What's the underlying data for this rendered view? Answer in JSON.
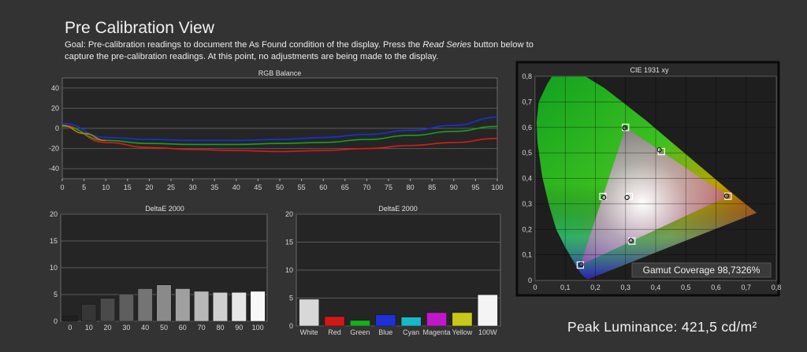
{
  "page": {
    "title": "Pre Calibration View",
    "goal_prefix": "Goal: Pre-calibration readings to document the As Found condition of the display. Press the ",
    "goal_button_name": "Read Series",
    "goal_suffix": " button below to capture the pre-calibration readings. At this point, no adjustments are being made to the display."
  },
  "peak_luminance": "Peak Luminance: 421,5 cd/m²",
  "colors": {
    "red": "#e01818",
    "green": "#1aa01a",
    "blue": "#1830e0",
    "orange": "#c07818"
  },
  "chart_data": [
    {
      "type": "line",
      "title": "RGB Balance",
      "x": [
        0,
        5,
        10,
        15,
        20,
        25,
        30,
        35,
        40,
        45,
        50,
        55,
        60,
        65,
        70,
        75,
        80,
        85,
        90,
        95,
        100
      ],
      "xticks": [
        "0",
        "5",
        "10",
        "15",
        "20",
        "25",
        "30",
        "35",
        "40",
        "45",
        "50",
        "55",
        "60",
        "65",
        "70",
        "75",
        "80",
        "85",
        "90",
        "95",
        "100"
      ],
      "yticks": [
        "40",
        "20",
        "0",
        "-20",
        "-40"
      ],
      "ylim": [
        -50,
        50
      ],
      "xlim": [
        0,
        100
      ],
      "grid": true,
      "series": [
        {
          "color": "#e01818",
          "x": [
            0,
            10,
            20,
            30,
            40,
            50,
            60,
            70,
            80,
            90,
            100
          ],
          "values": [
            3,
            -14,
            -19,
            -21,
            -22,
            -23,
            -22,
            -20,
            -17,
            -14,
            -10
          ]
        },
        {
          "color": "#1aa01a",
          "x": [
            0,
            10,
            20,
            30,
            40,
            50,
            60,
            70,
            80,
            90,
            100
          ],
          "values": [
            2,
            -12,
            -15,
            -16,
            -16,
            -15,
            -14,
            -11,
            -7,
            -3,
            2
          ]
        },
        {
          "color": "#1830e0",
          "x": [
            0,
            10,
            20,
            30,
            40,
            50,
            60,
            70,
            80,
            90,
            100
          ],
          "values": [
            5,
            -9,
            -11,
            -12,
            -12,
            -11,
            -9,
            -6,
            -2,
            3,
            11
          ]
        },
        {
          "color": "#c07818",
          "x": [
            0,
            5,
            10
          ],
          "values": [
            3,
            -5,
            -12
          ]
        }
      ]
    },
    {
      "type": "bar",
      "title": "DeltaE 2000",
      "categories": [
        "0",
        "10",
        "20",
        "30",
        "40",
        "50",
        "60",
        "70",
        "80",
        "90",
        "100"
      ],
      "values": [
        1.0,
        3.2,
        4.3,
        5.1,
        6.1,
        6.8,
        6.1,
        5.6,
        5.4,
        5.4,
        5.6
      ],
      "colors": [
        "#202020",
        "#363636",
        "#4a4a4a",
        "#5e5e5e",
        "#747474",
        "#8a8a8a",
        "#a0a0a0",
        "#b8b8b8",
        "#cfcfcf",
        "#e6e6e6",
        "#f8f8f8"
      ],
      "yticks": [
        "20",
        "15",
        "10",
        "5",
        "0"
      ],
      "ylim": [
        0,
        20
      ]
    },
    {
      "type": "bar",
      "title": "DeltaE 2000",
      "categories": [
        "White",
        "Red",
        "Green",
        "Blue",
        "Cyan",
        "Magenta",
        "Yellow",
        "100W"
      ],
      "values": [
        4.8,
        1.7,
        1.0,
        2.0,
        1.6,
        2.4,
        2.4,
        5.6
      ],
      "colors": [
        "#d8d8d8",
        "#d01818",
        "#18b018",
        "#2030d8",
        "#18b8c8",
        "#c018c8",
        "#c8c818",
        "#f4f4f4"
      ],
      "yticks": [
        "20",
        "15",
        "10",
        "5",
        "0"
      ],
      "ylim": [
        0,
        20
      ]
    },
    {
      "type": "scatter",
      "title": "CIE 1931 xy",
      "xticks": [
        "0",
        "0,1",
        "0,2",
        "0,3",
        "0,4",
        "0,5",
        "0,6",
        "0,7",
        "0,8"
      ],
      "yticks": [
        "0,8",
        "0,7",
        "0,6",
        "0,5",
        "0,4",
        "0,3",
        "0,2",
        "0,1",
        "0"
      ],
      "xlim": [
        0,
        0.8
      ],
      "ylim": [
        0,
        0.8
      ],
      "targets": [
        {
          "name": "Red",
          "x": 0.64,
          "y": 0.33
        },
        {
          "name": "Green",
          "x": 0.3,
          "y": 0.6
        },
        {
          "name": "Blue",
          "x": 0.15,
          "y": 0.06
        },
        {
          "name": "Cyan",
          "x": 0.225,
          "y": 0.329
        },
        {
          "name": "Magenta",
          "x": 0.321,
          "y": 0.154
        },
        {
          "name": "Yellow",
          "x": 0.419,
          "y": 0.505
        },
        {
          "name": "White",
          "x": 0.3127,
          "y": 0.329
        }
      ],
      "measured": [
        {
          "x": 0.635,
          "y": 0.331
        },
        {
          "x": 0.297,
          "y": 0.598
        },
        {
          "x": 0.153,
          "y": 0.062
        },
        {
          "x": 0.228,
          "y": 0.325
        },
        {
          "x": 0.318,
          "y": 0.156
        },
        {
          "x": 0.412,
          "y": 0.512
        },
        {
          "x": 0.305,
          "y": 0.325
        }
      ],
      "gamut_coverage_label": "Gamut Coverage 98,7326%"
    }
  ]
}
